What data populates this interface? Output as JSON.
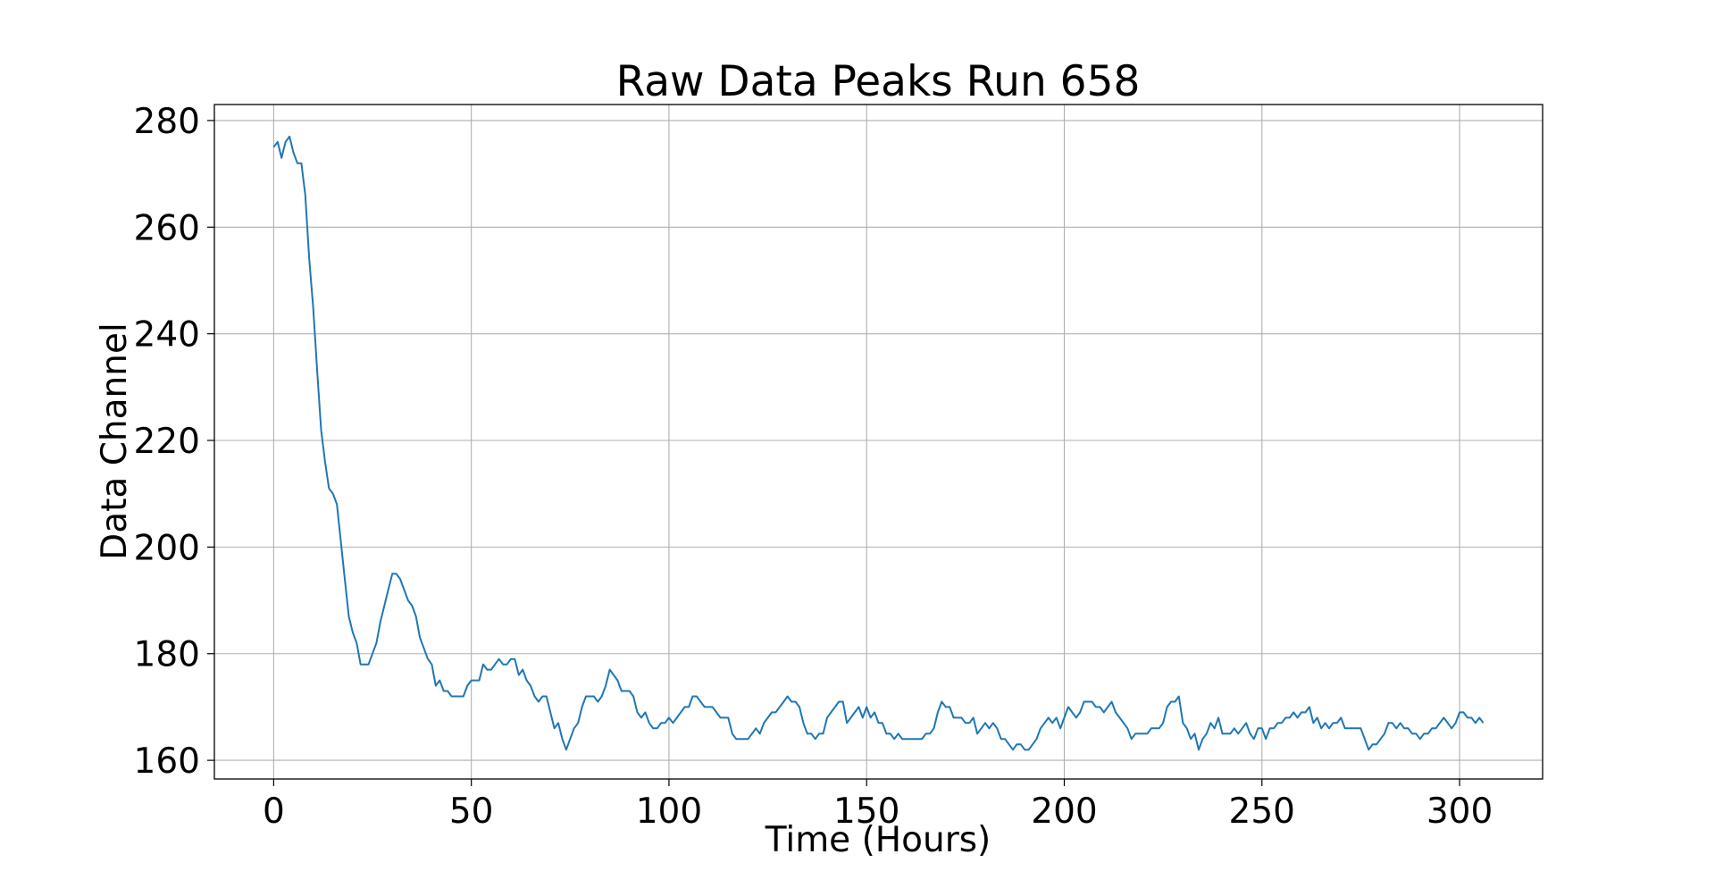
{
  "chart_data": {
    "type": "line",
    "title": "Raw Data Peaks Run 658",
    "xlabel": "Time (Hours)",
    "ylabel": "Data Channel",
    "xlim": [
      -15,
      321
    ],
    "ylim": [
      156.5,
      283
    ],
    "xticks": [
      0,
      50,
      100,
      150,
      200,
      250,
      300
    ],
    "yticks": [
      160,
      180,
      200,
      220,
      240,
      260,
      280
    ],
    "grid": true,
    "line_color": "#1f77b4",
    "series": [
      {
        "x": [
          0,
          1,
          2,
          3,
          4,
          5,
          6,
          7,
          8,
          9,
          10,
          11,
          12,
          13,
          14,
          15,
          16,
          17,
          18,
          19,
          20,
          21,
          22,
          23,
          24,
          25,
          26,
          27,
          28,
          29,
          30,
          31,
          32,
          33,
          34,
          35,
          36,
          37,
          38,
          39,
          40,
          41,
          42,
          43,
          44,
          45,
          46,
          47,
          48,
          49,
          50,
          51,
          52,
          53,
          54,
          55,
          56,
          57,
          58,
          59,
          60,
          61,
          62,
          63,
          64,
          65,
          66,
          67,
          68,
          69,
          70,
          71,
          72,
          73,
          74,
          75,
          76,
          77,
          78,
          79,
          80,
          81,
          82,
          83,
          84,
          85,
          86,
          87,
          88,
          89,
          90,
          91,
          92,
          93,
          94,
          95,
          96,
          97,
          98,
          99,
          100,
          101,
          102,
          103,
          104,
          105,
          106,
          107,
          108,
          109,
          110,
          111,
          112,
          113,
          114,
          115,
          116,
          117,
          118,
          119,
          120,
          121,
          122,
          123,
          124,
          125,
          126,
          127,
          128,
          129,
          130,
          131,
          132,
          133,
          134,
          135,
          136,
          137,
          138,
          139,
          140,
          141,
          142,
          143,
          144,
          145,
          146,
          147,
          148,
          149,
          150,
          151,
          152,
          153,
          154,
          155,
          156,
          157,
          158,
          159,
          160,
          161,
          162,
          163,
          164,
          165,
          166,
          167,
          168,
          169,
          170,
          171,
          172,
          173,
          174,
          175,
          176,
          177,
          178,
          179,
          180,
          181,
          182,
          183,
          184,
          185,
          186,
          187,
          188,
          189,
          190,
          191,
          192,
          193,
          194,
          195,
          196,
          197,
          198,
          199,
          200,
          201,
          202,
          203,
          204,
          205,
          206,
          207,
          208,
          209,
          210,
          211,
          212,
          213,
          214,
          215,
          216,
          217,
          218,
          219,
          220,
          221,
          222,
          223,
          224,
          225,
          226,
          227,
          228,
          229,
          230,
          231,
          232,
          233,
          234,
          235,
          236,
          237,
          238,
          239,
          240,
          241,
          242,
          243,
          244,
          245,
          246,
          247,
          248,
          249,
          250,
          251,
          252,
          253,
          254,
          255,
          256,
          257,
          258,
          259,
          260,
          261,
          262,
          263,
          264,
          265,
          266,
          267,
          268,
          269,
          270,
          271,
          272,
          273,
          274,
          275,
          276,
          277,
          278,
          279,
          280,
          281,
          282,
          283,
          284,
          285,
          286,
          287,
          288,
          289,
          290,
          291,
          292,
          293,
          294,
          295,
          296,
          297,
          298,
          299,
          300,
          301,
          302,
          303,
          304,
          305,
          306
        ],
        "y": [
          275,
          276,
          273,
          276,
          277,
          274,
          272,
          272,
          266,
          254,
          245,
          233,
          222,
          216,
          211,
          210,
          208,
          201,
          194,
          187,
          184,
          182,
          178,
          178,
          178,
          180,
          182,
          186,
          189,
          192,
          195,
          195,
          194,
          192,
          190,
          189,
          187,
          183,
          181,
          179,
          178,
          174,
          175,
          173,
          173,
          172,
          172,
          172,
          172,
          174,
          175,
          175,
          175,
          178,
          177,
          177,
          178,
          179,
          178,
          178,
          179,
          179,
          176,
          177,
          175,
          174,
          172,
          171,
          172,
          172,
          169,
          166,
          167,
          164,
          162,
          164,
          166,
          167,
          170,
          172,
          172,
          172,
          171,
          172,
          174,
          177,
          176,
          175,
          173,
          173,
          173,
          172,
          169,
          168,
          169,
          167,
          166,
          166,
          167,
          167,
          168,
          167,
          168,
          169,
          170,
          170,
          172,
          172,
          171,
          170,
          170,
          170,
          169,
          168,
          168,
          168,
          165,
          164,
          164,
          164,
          164,
          165,
          166,
          165,
          167,
          168,
          169,
          169,
          170,
          171,
          172,
          171,
          171,
          170,
          167,
          165,
          165,
          164,
          165,
          165,
          168,
          169,
          170,
          171,
          171,
          167,
          168,
          169,
          170,
          168,
          170,
          168,
          169,
          167,
          167,
          165,
          165,
          164,
          165,
          164,
          164,
          164,
          164,
          164,
          164,
          165,
          165,
          166,
          169,
          171,
          170,
          170,
          168,
          168,
          168,
          167,
          167,
          168,
          165,
          166,
          167,
          166,
          167,
          166,
          164,
          164,
          163,
          162,
          163,
          163,
          162,
          162,
          163,
          164,
          166,
          167,
          168,
          167,
          168,
          166,
          168,
          170,
          169,
          168,
          169,
          171,
          171,
          171,
          170,
          170,
          169,
          170,
          171,
          169,
          168,
          167,
          166,
          164,
          165,
          165,
          165,
          165,
          166,
          166,
          166,
          167,
          170,
          171,
          171,
          172,
          167,
          166,
          164,
          165,
          162,
          164,
          165,
          167,
          166,
          168,
          165,
          165,
          165,
          166,
          165,
          166,
          167,
          165,
          164,
          166,
          166,
          164,
          166,
          166,
          167,
          167,
          168,
          168,
          169,
          168,
          169,
          169,
          170,
          167,
          168,
          166,
          167,
          166,
          167,
          167,
          168,
          166,
          166,
          166,
          166,
          166,
          164,
          162,
          163,
          163,
          164,
          165,
          167,
          167,
          166,
          167,
          166,
          166,
          165,
          165,
          164,
          165,
          165,
          166,
          166,
          167,
          168,
          167,
          166,
          167,
          169,
          169,
          168,
          168,
          167,
          168,
          167
        ]
      }
    ]
  }
}
